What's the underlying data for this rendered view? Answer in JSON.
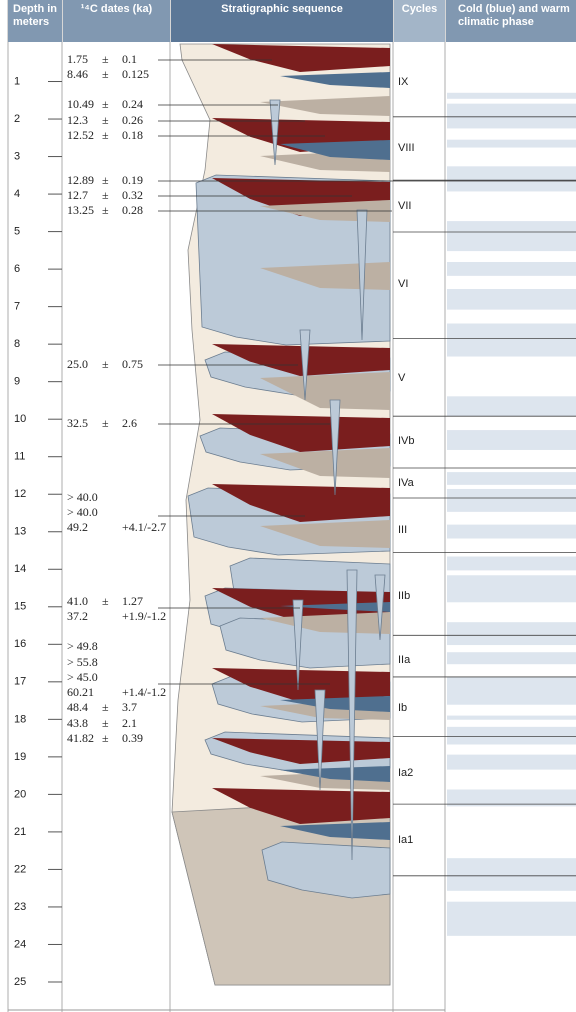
{
  "header": {
    "depth": "Depth in meters",
    "dates": "¹⁴C dates (ka)",
    "sequence": "Stratigraphic sequence",
    "cycles": "Cycles",
    "climate": "Cold (blue) and warm climatic phase"
  },
  "depth_axis": {
    "range": [
      0,
      25.8
    ],
    "ticks": [
      1,
      2,
      3,
      4,
      5,
      6,
      7,
      8,
      9,
      10,
      11,
      12,
      13,
      14,
      15,
      16,
      17,
      18,
      19,
      20,
      21,
      22,
      23,
      24,
      25
    ]
  },
  "dates": [
    [
      "1.75",
      "±",
      "0.1"
    ],
    [
      "8.46",
      "±",
      "0.125"
    ],
    [
      "10.49",
      "±",
      "0.24"
    ],
    [
      "12.3",
      "±",
      "0.26"
    ],
    [
      "12.52",
      "±",
      "0.18"
    ],
    [
      "12.89",
      "±",
      "0.19"
    ],
    [
      "12.7",
      "±",
      "0.32"
    ],
    [
      "13.25",
      "±",
      "0.28"
    ],
    [
      "25.0",
      "±",
      "0.75"
    ],
    [
      "32.5",
      "±",
      "2.6"
    ],
    [
      "> 40.0"
    ],
    [
      "> 40.0"
    ],
    [
      "49.2",
      "+4.1/-2.7"
    ],
    [
      "41.0",
      "±",
      "1.27"
    ],
    [
      "37.2",
      "+1.9/-1.2"
    ],
    [
      "> 49.8"
    ],
    [
      "> 55.8"
    ],
    [
      "> 45.0"
    ],
    [
      "60.21",
      "+1.4/-1.2"
    ],
    [
      "48.4",
      "±",
      "3.7"
    ],
    [
      "43.8",
      "±",
      "2.1"
    ],
    [
      "41.82",
      "±",
      "0.39"
    ]
  ],
  "cycles": [
    "IX",
    "VIII",
    "VII",
    "VI",
    "V",
    "IVb",
    "IVa",
    "III",
    "IIb",
    "IIa",
    "Ib",
    "Ia2",
    "Ia1"
  ],
  "cycle_boundaries": [
    1.94,
    3.63,
    5.01,
    7.85,
    9.92,
    11.3,
    12.1,
    13.55,
    15.76,
    16.87,
    18.46,
    20.26,
    22.17
  ],
  "cold_phases": [
    [
      1.3,
      1.46
    ],
    [
      1.59,
      2.25
    ],
    [
      2.55,
      2.76
    ],
    [
      3.26,
      3.93
    ],
    [
      4.72,
      5.52
    ],
    [
      5.81,
      6.18
    ],
    [
      6.53,
      7.08
    ],
    [
      7.45,
      8.33
    ],
    [
      9.39,
      9.92
    ],
    [
      10.29,
      10.82
    ],
    [
      11.41,
      11.75
    ],
    [
      11.86,
      12.47
    ],
    [
      12.81,
      13.18
    ],
    [
      13.66,
      14.03
    ],
    [
      14.16,
      14.88
    ],
    [
      15.41,
      16.02
    ],
    [
      16.21,
      16.53
    ],
    [
      16.87,
      17.61
    ],
    [
      17.9,
      18.01
    ],
    [
      18.2,
      18.67
    ],
    [
      18.94,
      19.34
    ],
    [
      19.87,
      20.32
    ],
    [
      21.7,
      22.57
    ],
    [
      22.86,
      23.77
    ]
  ]
}
